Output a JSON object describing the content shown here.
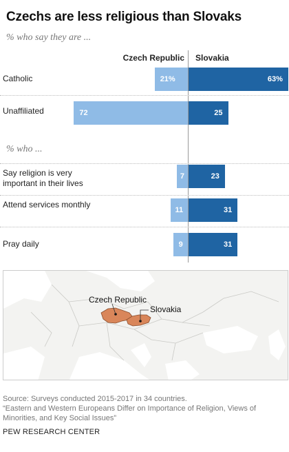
{
  "title": "Czechs are less religious than Slovaks",
  "subtitle1": "% who say they are ...",
  "subtitle2": "% who ...",
  "chart_data": {
    "type": "bar",
    "series_names": [
      "Czech Republic",
      "Slovakia"
    ],
    "rows": [
      {
        "label": "Catholic",
        "czech": 21,
        "czech_label": "21%",
        "slovakia": 63,
        "slovakia_label": "63%",
        "group": 1
      },
      {
        "label": "Unaffiliated",
        "czech": 72,
        "czech_label": "72",
        "slovakia": 25,
        "slovakia_label": "25",
        "group": 1
      },
      {
        "label": "Say religion is very important in their lives",
        "czech": 7,
        "czech_label": "7",
        "slovakia": 23,
        "slovakia_label": "23",
        "group": 2
      },
      {
        "label": "Attend services monthly",
        "czech": 11,
        "czech_label": "11",
        "slovakia": 31,
        "slovakia_label": "31",
        "group": 2
      },
      {
        "label": "Pray daily",
        "czech": 9,
        "czech_label": "9",
        "slovakia": 31,
        "slovakia_label": "31",
        "group": 2
      }
    ],
    "colors": {
      "czech": "#8fbbe6",
      "slovakia": "#1f64a3"
    }
  },
  "map": {
    "label_czech": "Czech Republic",
    "label_slovakia": "Slovakia",
    "highlight_color": "#d9865a"
  },
  "source": {
    "line1": "Source: Surveys conducted 2015-2017 in 34 countries.",
    "line2": "“Eastern and Western Europeans Differ on Importance of Religion, Views of Minorities, and Key Social Issues”"
  },
  "brand": "PEW RESEARCH CENTER"
}
